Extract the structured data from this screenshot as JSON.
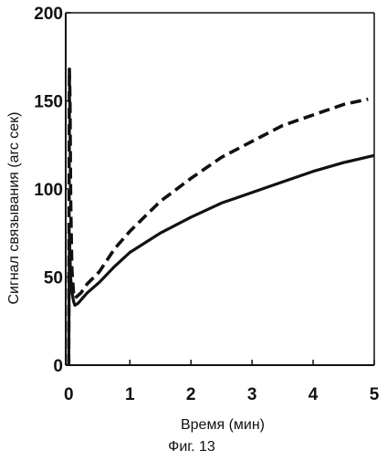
{
  "chart_data": {
    "type": "line",
    "title": "",
    "xlabel": "Время (мин)",
    "ylabel": "Сигнал связывания (arc сек)",
    "caption": "Фиг. 13",
    "xlim": [
      -0.05,
      5
    ],
    "ylim": [
      0,
      200
    ],
    "xticks": [
      0,
      1,
      2,
      3,
      4,
      5
    ],
    "yticks": [
      0,
      50,
      100,
      150,
      200
    ],
    "xtick_labels": [
      "0",
      "1",
      "2",
      "3",
      "4",
      "5"
    ],
    "ytick_labels": [
      "0",
      "50",
      "100",
      "150",
      "200"
    ],
    "grid": false,
    "legend": "none",
    "series": [
      {
        "style": "dashed",
        "color": "#111111",
        "x": [
          0,
          0.01,
          0.02,
          0.03,
          0.05,
          0.08,
          0.1,
          0.2,
          0.3,
          0.5,
          0.75,
          1,
          1.5,
          2,
          2.5,
          3,
          3.5,
          4,
          4.5,
          4.9
        ],
        "y": [
          0,
          168,
          150,
          95,
          55,
          40,
          38,
          41,
          46,
          53,
          66,
          76,
          93,
          106,
          118,
          127,
          136,
          142,
          148,
          151
        ]
      },
      {
        "style": "solid",
        "color": "#111111",
        "x": [
          0,
          0.01,
          0.02,
          0.03,
          0.05,
          0.08,
          0.1,
          0.15,
          0.2,
          0.3,
          0.5,
          0.75,
          1,
          1.5,
          2,
          2.5,
          3,
          3.5,
          4,
          4.5,
          5
        ],
        "y": [
          0,
          75,
          62,
          50,
          42,
          36,
          34,
          35,
          37,
          41,
          47,
          56,
          64,
          75,
          84,
          92,
          98,
          104,
          110,
          115,
          119
        ]
      }
    ]
  }
}
